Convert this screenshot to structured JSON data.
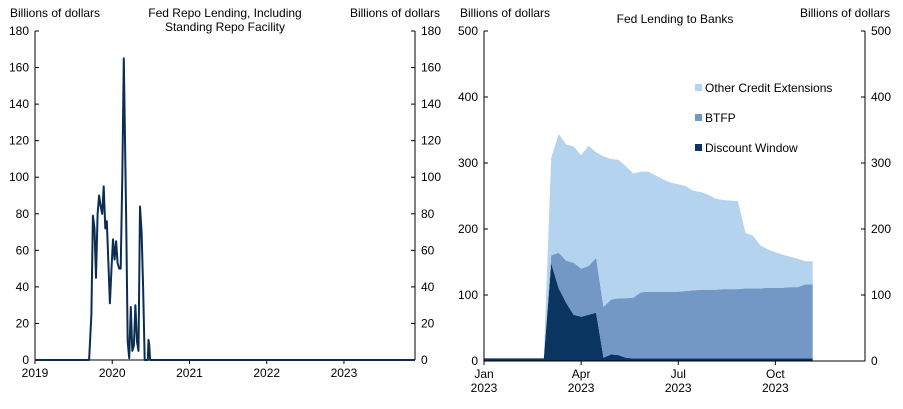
{
  "chart_data": [
    {
      "type": "line",
      "title": "Fed Repo Lending, Including Standing Repo Facility",
      "title_lines": [
        "Fed Repo Lending, Including",
        "Standing Repo Facility"
      ],
      "ylabel_left": "Billions of dollars",
      "ylabel_right": "Billions of dollars",
      "ylim": [
        0,
        180
      ],
      "yticks": [
        0,
        20,
        40,
        60,
        80,
        100,
        120,
        140,
        160,
        180
      ],
      "xlim": [
        2019.0,
        2023.92
      ],
      "xticks": [
        {
          "value": 2019.0,
          "label": "2019"
        },
        {
          "value": 2020.0,
          "label": "2020"
        },
        {
          "value": 2021.0,
          "label": "2021"
        },
        {
          "value": 2022.0,
          "label": "2022"
        },
        {
          "value": 2023.0,
          "label": "2023"
        }
      ],
      "color": "#0b2d52",
      "series": [
        {
          "name": "Fed repo lending",
          "x": [
            2019.0,
            2019.7,
            2019.73,
            2019.75,
            2019.77,
            2019.79,
            2019.81,
            2019.83,
            2019.85,
            2019.87,
            2019.89,
            2019.91,
            2019.93,
            2019.95,
            2019.97,
            2019.99,
            2020.01,
            2020.03,
            2020.05,
            2020.07,
            2020.09,
            2020.11,
            2020.13,
            2020.15,
            2020.18,
            2020.2,
            2020.22,
            2020.24,
            2020.26,
            2020.28,
            2020.3,
            2020.32,
            2020.34,
            2020.36,
            2020.38,
            2020.4,
            2020.42,
            2020.44,
            2020.46,
            2020.47,
            2020.48,
            2020.49,
            2020.5,
            2020.51,
            2020.52,
            2020.55,
            2023.92
          ],
          "values": [
            0,
            0,
            25,
            79,
            72,
            45,
            80,
            90,
            84,
            80,
            95,
            72,
            76,
            53,
            31,
            50,
            66,
            55,
            65,
            53,
            50,
            50,
            100,
            165,
            80,
            10,
            1,
            29,
            5,
            8,
            30,
            10,
            5,
            84,
            70,
            40,
            0,
            0,
            0,
            11,
            8,
            0,
            0,
            0,
            0,
            0,
            0
          ]
        }
      ]
    },
    {
      "type": "area",
      "stacked": true,
      "title": "Fed Lending to Banks",
      "ylabel_left": "Billions of dollars",
      "ylabel_right": "Billions of dollars",
      "ylim": [
        0,
        500
      ],
      "yticks": [
        0,
        100,
        200,
        300,
        400,
        500
      ],
      "xlim": [
        0,
        51
      ],
      "xticks": [
        {
          "value": 0,
          "label": "Jan",
          "sublabel": "2023"
        },
        {
          "value": 13,
          "label": "Apr",
          "sublabel": "2023"
        },
        {
          "value": 26,
          "label": "Jul",
          "sublabel": "2023"
        },
        {
          "value": 39,
          "label": "Oct",
          "sublabel": "2023"
        }
      ],
      "legend_position": "top-right",
      "x": [
        0,
        1,
        2,
        3,
        4,
        5,
        6,
        7,
        8,
        9,
        10,
        11,
        12,
        13,
        14,
        15,
        16,
        17,
        18,
        19,
        20,
        21,
        22,
        23,
        24,
        25,
        26,
        27,
        28,
        29,
        30,
        31,
        32,
        33,
        34,
        35,
        36,
        37,
        38,
        39,
        40,
        41,
        42,
        43,
        44
      ],
      "series": [
        {
          "name": "Discount Window",
          "color": "#0a3560",
          "values": [
            4,
            4,
            4,
            4,
            4,
            4,
            4,
            4,
            4,
            148,
            110,
            88,
            70,
            67,
            70,
            73,
            5,
            10,
            9,
            5,
            4,
            4,
            4,
            4,
            4,
            4,
            4,
            4,
            4,
            4,
            4,
            4,
            4,
            4,
            4,
            4,
            4,
            4,
            4,
            4,
            4,
            4,
            4,
            4,
            4
          ]
        },
        {
          "name": "BTFP",
          "color": "#7398c5",
          "values": [
            0,
            0,
            0,
            0,
            0,
            0,
            0,
            0,
            0,
            12,
            54,
            64,
            79,
            73,
            74,
            83,
            77,
            83,
            86,
            90,
            92,
            100,
            101,
            101,
            101,
            101,
            101,
            102,
            103,
            104,
            104,
            104,
            105,
            105,
            105,
            106,
            106,
            106,
            107,
            107,
            107,
            108,
            108,
            112,
            112
          ]
        },
        {
          "name": "Other Credit Extensions",
          "color": "#b4d3ee",
          "values": [
            0,
            0,
            0,
            0,
            0,
            0,
            0,
            0,
            0,
            148,
            180,
            176,
            176,
            172,
            182,
            160,
            228,
            213,
            210,
            200,
            188,
            183,
            182,
            176,
            170,
            165,
            163,
            159,
            151,
            148,
            144,
            138,
            135,
            134,
            133,
            84,
            80,
            65,
            58,
            54,
            50,
            46,
            43,
            35,
            35
          ]
        }
      ],
      "legend_order": [
        "Other Credit Extensions",
        "BTFP",
        "Discount Window"
      ]
    }
  ]
}
